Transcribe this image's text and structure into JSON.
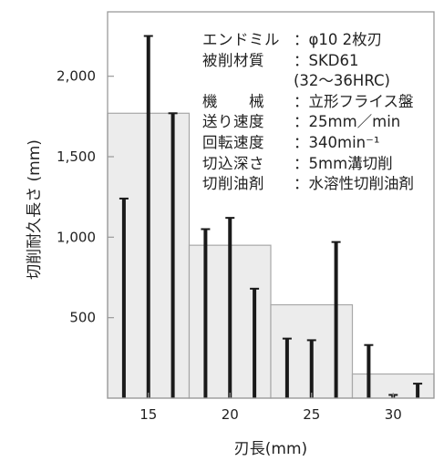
{
  "chart_data": {
    "type": "bar",
    "ylabel": "切削耐久長さ (mm)",
    "xlabel": "刃長(mm)",
    "ylim": [
      0,
      2400
    ],
    "yticks": [
      {
        "value": 500,
        "label": "500"
      },
      {
        "value": 1000,
        "label": "1,000"
      },
      {
        "value": 1500,
        "label": "1,500"
      },
      {
        "value": 2000,
        "label": "2,000"
      }
    ],
    "xlim": [
      12.5,
      32.5
    ],
    "xticks": [
      {
        "value": 15,
        "label": "15"
      },
      {
        "value": 20,
        "label": "20"
      },
      {
        "value": 25,
        "label": "25"
      },
      {
        "value": 30,
        "label": "30"
      }
    ],
    "groups": [
      {
        "category": "15",
        "x_from": 12.5,
        "x_to": 17.5,
        "average": 1770,
        "samples": [
          1240,
          2250,
          1770
        ]
      },
      {
        "category": "20",
        "x_from": 17.5,
        "x_to": 22.5,
        "average": 950,
        "samples": [
          1050,
          1120,
          680
        ]
      },
      {
        "category": "25",
        "x_from": 22.5,
        "x_to": 27.5,
        "average": 580,
        "samples": [
          370,
          360,
          970
        ]
      },
      {
        "category": "30",
        "x_from": 27.5,
        "x_to": 32.5,
        "average": 150,
        "samples": [
          330,
          20,
          90
        ]
      }
    ],
    "colors": {
      "average_fill": "#ececec",
      "average_edge": "#a8a8a8",
      "sample_bar": "#1a1a1a",
      "frame": "#9a9a9a"
    }
  },
  "conditions": [
    {
      "key": "エンドミル",
      "sep": "：",
      "value": "φ10  2枚刃",
      "cont": ""
    },
    {
      "key": "被削材質",
      "sep": "：",
      "value": "SKD61",
      "cont": "(32〜36HRC)"
    },
    {
      "key": "機　　械",
      "sep": "：",
      "value": "立形フライス盤",
      "cont": ""
    },
    {
      "key": "送り速度",
      "sep": "：",
      "value": "25mm／min",
      "cont": ""
    },
    {
      "key": "回転速度",
      "sep": "：",
      "value": "340min⁻¹",
      "cont": ""
    },
    {
      "key": "切込深さ",
      "sep": "：",
      "value": "5mm溝切削",
      "cont": ""
    },
    {
      "key": "切削油剤",
      "sep": "：",
      "value": "水溶性切削油剤",
      "cont": ""
    }
  ]
}
